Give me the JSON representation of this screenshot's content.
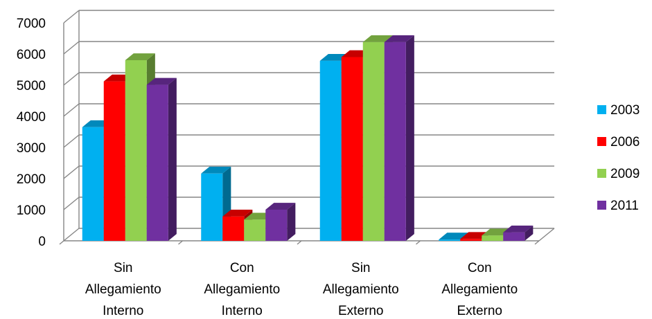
{
  "chart_data": {
    "type": "bar",
    "style": "3d-clustered-column",
    "categories": [
      [
        "Sin",
        "Allegamiento",
        "Interno"
      ],
      [
        "Con",
        "Allegamiento",
        "Interno"
      ],
      [
        "Sin",
        "Allegamiento",
        "Externo"
      ],
      [
        "Con",
        "Allegamiento",
        "Externo"
      ]
    ],
    "series": [
      {
        "name": "2003",
        "color": "#00B0F0",
        "values": [
          3650,
          2160,
          5780,
          40
        ]
      },
      {
        "name": "2006",
        "color": "#FF0000",
        "values": [
          5120,
          780,
          5900,
          60
        ]
      },
      {
        "name": "2009",
        "color": "#92D050",
        "values": [
          5800,
          680,
          6380,
          170
        ]
      },
      {
        "name": "2011",
        "color": "#7030A0",
        "values": [
          5010,
          1000,
          6380,
          270
        ]
      }
    ],
    "yticks": [
      "0",
      "1000",
      "2000",
      "3000",
      "4000",
      "5000",
      "6000",
      "7000"
    ],
    "ylim": [
      0,
      7000
    ],
    "grid": true,
    "legend_position": "right"
  }
}
